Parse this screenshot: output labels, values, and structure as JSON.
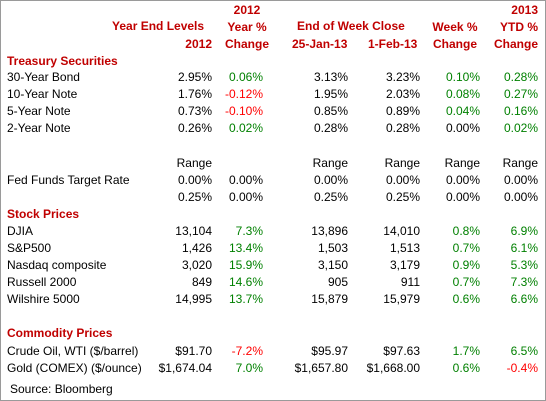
{
  "header": {
    "ye_title": "Year End Levels",
    "ye_year": "2012",
    "yp_year": "2012",
    "yp_line2": "Year %",
    "yp_line3": "Change",
    "ew_title": "End of Week Close",
    "d1": "25-Jan-13",
    "d2": "1-Feb-13",
    "wk_line1": "Week %",
    "wk_line2": "Change",
    "ytd_year": "2013",
    "ytd_line2": "YTD %",
    "ytd_line3": "Change"
  },
  "treasury": {
    "title": "Treasury Securities",
    "rows": [
      {
        "label": "30-Year Bond",
        "ye": "2.95%",
        "yp": "0.06%",
        "d1": "3.13%",
        "d2": "3.23%",
        "wk": "0.10%",
        "ytd": "0.28%"
      },
      {
        "label": "10-Year Note",
        "ye": "1.76%",
        "yp": "-0.12%",
        "d1": "1.95%",
        "d2": "2.03%",
        "wk": "0.08%",
        "ytd": "0.27%"
      },
      {
        "label": "5-Year Note",
        "ye": "0.73%",
        "yp": "-0.10%",
        "d1": "0.85%",
        "d2": "0.89%",
        "wk": "0.04%",
        "ytd": "0.16%"
      },
      {
        "label": "2-Year Note",
        "ye": "0.26%",
        "yp": "0.02%",
        "d1": "0.28%",
        "d2": "0.28%",
        "wk": "0.00%",
        "ytd": "0.02%"
      }
    ]
  },
  "fed": {
    "range_word": "Range",
    "label": "Fed Funds Target Rate",
    "row1": {
      "ye": "0.00%",
      "yp": "0.00%",
      "d1": "0.00%",
      "d2": "0.00%",
      "wk": "0.00%",
      "ytd": "0.00%"
    },
    "row2": {
      "ye": "0.25%",
      "yp": "0.00%",
      "d1": "0.25%",
      "d2": "0.25%",
      "wk": "0.00%",
      "ytd": "0.00%"
    }
  },
  "stocks": {
    "title": "Stock Prices",
    "rows": [
      {
        "label": "DJIA",
        "ye": "13,104",
        "yp": "7.3%",
        "d1": "13,896",
        "d2": "14,010",
        "wk": "0.8%",
        "ytd": "6.9%"
      },
      {
        "label": "S&P500",
        "ye": "1,426",
        "yp": "13.4%",
        "d1": "1,503",
        "d2": "1,513",
        "wk": "0.7%",
        "ytd": "6.1%"
      },
      {
        "label": "Nasdaq composite",
        "ye": "3,020",
        "yp": "15.9%",
        "d1": "3,150",
        "d2": "3,179",
        "wk": "0.9%",
        "ytd": "5.3%"
      },
      {
        "label": "Russell 2000",
        "ye": "849",
        "yp": "14.6%",
        "d1": "905",
        "d2": "911",
        "wk": "0.7%",
        "ytd": "7.3%"
      },
      {
        "label": "Wilshire 5000",
        "ye": "14,995",
        "yp": "13.7%",
        "d1": "15,879",
        "d2": "15,979",
        "wk": "0.6%",
        "ytd": "6.6%"
      }
    ]
  },
  "commodities": {
    "title": "Commodity Prices",
    "rows": [
      {
        "label": "Crude Oil, WTI ($/barrel)",
        "ye": "$91.70",
        "yp": "-7.2%",
        "d1": "$95.97",
        "d2": "$97.63",
        "wk": "1.7%",
        "ytd": "6.5%"
      },
      {
        "label": "Gold (COMEX) ($/ounce)",
        "ye": "$1,674.04",
        "yp": "7.0%",
        "d1": "$1,657.80",
        "d2": "$1,668.00",
        "wk": "0.6%",
        "ytd": "-0.4%"
      }
    ]
  },
  "source": "Source: Bloomberg",
  "colors": {
    "header": "#c00000",
    "negative": "#ff0000",
    "positive": "#008000"
  }
}
